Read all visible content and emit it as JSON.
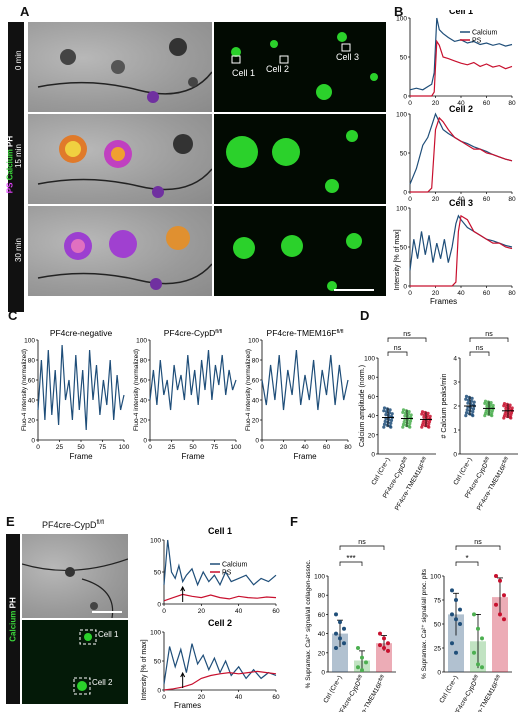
{
  "panels": {
    "A": "A",
    "B": "B",
    "C": "C",
    "D": "D",
    "E": "E",
    "F": "F"
  },
  "panelA": {
    "side_label_ps": "PS",
    "side_label_calcium": "Calcium",
    "side_label_ph": "PH",
    "times": [
      "0 min",
      "15 min",
      "30 min"
    ],
    "cells": [
      "Cell 1",
      "Cell 2",
      "Cell 3"
    ]
  },
  "panelB": {
    "titles": [
      "Cell 1",
      "Cell 2",
      "Cell 3"
    ],
    "legend": [
      "Calcium",
      "PS"
    ],
    "ylabel": "Intensity [% of max]",
    "xlabel": "Frames",
    "colors": {
      "calcium": "#1f4e79",
      "ps": "#c8102e"
    }
  },
  "panelC": {
    "titles": [
      "PF4cre-negative",
      "PF4cre-CypD",
      "PF4cre-TMEM16F"
    ],
    "title_sup": "fl/fl",
    "ylabel": "Fluo-4 intensity (normalized)",
    "xlabel": "Frame"
  },
  "panelD": {
    "ylabels": [
      "Calcium amplitude (norm.)",
      "# Calcium peaks/min"
    ],
    "groups": [
      "Ctrl (Cre−)",
      "PF4cre-CypD",
      "PF4cre-TMEM16F"
    ],
    "group_sup": "fl/fl",
    "ns": "ns"
  },
  "panelE": {
    "title": "PF4cre-CypD",
    "title_sup": "fl/fl",
    "side_label_calcium": "Calcium",
    "side_label_ph": "PH",
    "cells": [
      "Cell 1",
      "Cell 2"
    ],
    "legend": [
      "Calcium",
      "PS"
    ],
    "ylabel": "Intensity [% of max]",
    "xlabel": "Frames"
  },
  "panelF": {
    "ylabels": [
      "% Supramax. Ca²⁺ signal/all collagen-assoc.",
      "% Supramax. Ca²⁺ signal/all proc. plts"
    ],
    "groups": [
      "Ctrl (Cre−)",
      "PF4cre-CypD",
      "PF4cre-TMEM16F"
    ],
    "group_sup": "fl/fl",
    "sig": [
      "***",
      "ns",
      "*",
      "ns"
    ]
  },
  "chart_data": [
    {
      "type": "line",
      "id": "B-cell1",
      "title": "Cell 1",
      "xlim": [
        0,
        80
      ],
      "ylim": [
        0,
        100
      ],
      "xticks": [
        0,
        20,
        40,
        60,
        80
      ],
      "yticks": [
        0,
        50,
        100
      ],
      "series": [
        {
          "name": "Calcium",
          "x": [
            0,
            5,
            10,
            14,
            17,
            19,
            21,
            23,
            26,
            30,
            35,
            40,
            45,
            50,
            55,
            60,
            65,
            70,
            75,
            80
          ],
          "y": [
            8,
            10,
            8,
            12,
            15,
            30,
            100,
            85,
            80,
            75,
            70,
            72,
            68,
            70,
            66,
            68,
            65,
            67,
            64,
            66
          ]
        },
        {
          "name": "PS",
          "x": [
            0,
            5,
            10,
            14,
            17,
            19,
            21,
            23,
            26,
            30,
            35,
            40,
            45,
            50,
            55,
            60,
            65,
            70,
            75,
            80
          ],
          "y": [
            0,
            0,
            0,
            0,
            0,
            5,
            70,
            65,
            50,
            48,
            45,
            42,
            40,
            43,
            38,
            41,
            37,
            39,
            35,
            38
          ]
        }
      ]
    },
    {
      "type": "line",
      "id": "B-cell2",
      "title": "Cell 2",
      "xlim": [
        0,
        80
      ],
      "ylim": [
        0,
        100
      ],
      "xticks": [
        0,
        20,
        40,
        60,
        80
      ],
      "yticks": [
        0,
        50,
        100
      ],
      "series": [
        {
          "name": "Calcium",
          "x": [
            0,
            5,
            10,
            14,
            17,
            20,
            23,
            26,
            30,
            35,
            40,
            45,
            50,
            55,
            60,
            65,
            70,
            75,
            80
          ],
          "y": [
            10,
            30,
            60,
            70,
            85,
            100,
            90,
            80,
            75,
            70,
            65,
            62,
            58,
            55,
            52,
            48,
            45,
            42,
            40
          ]
        },
        {
          "name": "PS",
          "x": [
            0,
            5,
            10,
            14,
            17,
            20,
            23,
            26,
            30,
            35,
            40,
            45,
            50,
            55,
            60,
            65,
            70,
            75,
            80
          ],
          "y": [
            0,
            0,
            0,
            0,
            5,
            80,
            95,
            90,
            80,
            70,
            65,
            60,
            55,
            55,
            50,
            48,
            45,
            42,
            40
          ]
        }
      ]
    },
    {
      "type": "line",
      "id": "B-cell3",
      "title": "Cell 3",
      "xlim": [
        0,
        80
      ],
      "ylim": [
        0,
        100
      ],
      "xticks": [
        0,
        20,
        40,
        60,
        80
      ],
      "yticks": [
        0,
        50,
        100
      ],
      "series": [
        {
          "name": "Calcium",
          "x": [
            0,
            3,
            6,
            9,
            12,
            15,
            18,
            21,
            24,
            27,
            30,
            33,
            36,
            38,
            40,
            45,
            50,
            55,
            60,
            65,
            70,
            75,
            80
          ],
          "y": [
            20,
            60,
            35,
            70,
            40,
            65,
            30,
            55,
            35,
            60,
            30,
            50,
            80,
            90,
            85,
            75,
            70,
            65,
            60,
            58,
            55,
            52,
            50
          ]
        },
        {
          "name": "PS",
          "x": [
            0,
            3,
            6,
            9,
            12,
            15,
            18,
            21,
            24,
            27,
            30,
            33,
            36,
            38,
            40,
            45,
            50,
            55,
            60,
            65,
            70,
            75,
            80
          ],
          "y": [
            0,
            0,
            0,
            0,
            0,
            0,
            0,
            0,
            0,
            0,
            0,
            0,
            5,
            70,
            90,
            85,
            70,
            65,
            60,
            55,
            55,
            50,
            48
          ]
        }
      ]
    },
    {
      "type": "line",
      "id": "C-neg",
      "title": "PF4cre-negative",
      "xlim": [
        0,
        100
      ],
      "ylim": [
        0,
        100
      ],
      "xticks": [
        0,
        25,
        50,
        75,
        100
      ],
      "yticks": [
        0,
        20,
        40,
        60,
        80,
        100
      ],
      "series": [
        {
          "name": "Fluo-4",
          "x": [
            0,
            4,
            8,
            12,
            16,
            20,
            24,
            28,
            32,
            36,
            40,
            44,
            48,
            52,
            56,
            60,
            64,
            68,
            72,
            76,
            80,
            84,
            88,
            92,
            96,
            100
          ],
          "y": [
            30,
            80,
            20,
            90,
            25,
            70,
            15,
            95,
            40,
            60,
            20,
            85,
            30,
            70,
            10,
            90,
            40,
            75,
            25,
            60,
            35,
            80,
            20,
            65,
            30,
            45
          ]
        }
      ]
    },
    {
      "type": "line",
      "id": "C-cypd",
      "title": "PF4cre-CypD",
      "xlim": [
        0,
        100
      ],
      "ylim": [
        0,
        100
      ],
      "xticks": [
        0,
        25,
        50,
        75,
        100
      ],
      "yticks": [
        0,
        20,
        40,
        60,
        80,
        100
      ],
      "series": [
        {
          "name": "Fluo-4",
          "x": [
            0,
            4,
            8,
            12,
            16,
            20,
            24,
            28,
            32,
            36,
            40,
            44,
            48,
            52,
            56,
            60,
            64,
            68,
            72,
            76,
            80,
            84,
            88,
            92,
            96,
            100
          ],
          "y": [
            40,
            70,
            35,
            80,
            45,
            60,
            30,
            75,
            50,
            65,
            40,
            85,
            45,
            70,
            35,
            80,
            50,
            90,
            40,
            75,
            55,
            85,
            45,
            70,
            50,
            60
          ]
        }
      ]
    },
    {
      "type": "line",
      "id": "C-tmem",
      "title": "PF4cre-TMEM16F",
      "xlim": [
        0,
        80
      ],
      "ylim": [
        0,
        100
      ],
      "xticks": [
        0,
        20,
        40,
        60,
        80
      ],
      "yticks": [
        0,
        20,
        40,
        60,
        80,
        100
      ],
      "series": [
        {
          "name": "Fluo-4",
          "x": [
            0,
            4,
            8,
            12,
            16,
            20,
            24,
            28,
            32,
            36,
            40,
            44,
            48,
            52,
            56,
            60,
            64,
            68,
            72,
            76,
            80
          ],
          "y": [
            60,
            35,
            75,
            40,
            85,
            30,
            70,
            45,
            90,
            35,
            65,
            40,
            80,
            30,
            70,
            45,
            85,
            35,
            75,
            40,
            60
          ]
        }
      ]
    },
    {
      "type": "scatter",
      "id": "D-amp",
      "ylabel": "Calcium amplitude (norm.)",
      "ylim": [
        0,
        100
      ],
      "yticks": [
        0,
        20,
        40,
        60,
        80,
        100
      ],
      "categories": [
        "Ctrl (Cre−)",
        "PF4cre-CypD",
        "PF4cre-TMEM16F"
      ],
      "means": [
        38,
        37,
        36
      ],
      "sd": [
        10,
        9,
        8
      ],
      "colors": [
        "#1f4e79",
        "#4caf50",
        "#c8102e"
      ]
    },
    {
      "type": "scatter",
      "id": "D-peaks",
      "ylabel": "# Calcium peaks/min",
      "ylim": [
        0,
        4
      ],
      "yticks": [
        0,
        1,
        2,
        3,
        4
      ],
      "categories": [
        "Ctrl (Cre−)",
        "PF4cre-CypD",
        "PF4cre-TMEM16F"
      ],
      "means": [
        2.0,
        1.9,
        1.8
      ],
      "sd": [
        0.4,
        0.3,
        0.3
      ],
      "colors": [
        "#1f4e79",
        "#4caf50",
        "#c8102e"
      ]
    },
    {
      "type": "line",
      "id": "E-cell1",
      "title": "Cell 1",
      "xlim": [
        0,
        60
      ],
      "ylim": [
        0,
        100
      ],
      "xticks": [
        0,
        20,
        40,
        60
      ],
      "yticks": [
        0,
        50,
        100
      ],
      "series": [
        {
          "name": "Calcium",
          "x": [
            0,
            2,
            4,
            6,
            8,
            10,
            12,
            15,
            18,
            21,
            24,
            27,
            30,
            33,
            36,
            40,
            44,
            48,
            52,
            56,
            60
          ],
          "y": [
            30,
            100,
            50,
            40,
            60,
            35,
            45,
            55,
            30,
            50,
            35,
            45,
            30,
            50,
            35,
            40,
            45,
            30,
            40,
            35,
            45
          ]
        },
        {
          "name": "PS",
          "x": [
            0,
            5,
            10,
            15,
            20,
            25,
            30,
            35,
            40,
            45,
            50,
            55,
            60
          ],
          "y": [
            5,
            10,
            15,
            12,
            10,
            14,
            10,
            8,
            12,
            10,
            9,
            11,
            10
          ]
        }
      ]
    },
    {
      "type": "line",
      "id": "E-cell2",
      "title": "Cell 2",
      "xlim": [
        0,
        60
      ],
      "ylim": [
        0,
        100
      ],
      "xticks": [
        0,
        20,
        40,
        60
      ],
      "yticks": [
        0,
        50,
        100
      ],
      "series": [
        {
          "name": "Calcium",
          "x": [
            0,
            3,
            6,
            9,
            12,
            15,
            18,
            21,
            24,
            27,
            30,
            33,
            36,
            40,
            44,
            48,
            52,
            56,
            60
          ],
          "y": [
            10,
            75,
            40,
            70,
            30,
            80,
            45,
            60,
            35,
            55,
            30,
            50,
            25,
            40,
            20,
            35,
            20,
            30,
            25
          ]
        },
        {
          "name": "PS",
          "x": [
            0,
            5,
            10,
            15,
            20,
            25,
            30,
            35,
            40,
            45,
            50,
            55,
            60
          ],
          "y": [
            0,
            2,
            5,
            10,
            20,
            25,
            28,
            30,
            28,
            30,
            32,
            30,
            28
          ]
        }
      ]
    },
    {
      "type": "bar",
      "id": "F-collagen",
      "ylabel": "% Supramax. Ca²⁺ signal/all collagen-assoc.",
      "ylim": [
        0,
        100
      ],
      "yticks": [
        0,
        20,
        40,
        60,
        80,
        100
      ],
      "categories": [
        "Ctrl (Cre−)",
        "PF4cre-CypD",
        "PF4cre-TMEM16F"
      ],
      "values": [
        40,
        12,
        30
      ],
      "sd": [
        14,
        10,
        8
      ],
      "points": [
        [
          60,
          52,
          45,
          40,
          35,
          30,
          25
        ],
        [
          25,
          15,
          10,
          5,
          2
        ],
        [
          40,
          35,
          30,
          28,
          25,
          22
        ]
      ],
      "colors": [
        "#1f4e79",
        "#4caf50",
        "#c8102e"
      ]
    },
    {
      "type": "bar",
      "id": "F-proc",
      "ylabel": "% Supramax. Ca²⁺ signal/all proc. plts",
      "ylim": [
        0,
        100
      ],
      "yticks": [
        0,
        25,
        50,
        75,
        100
      ],
      "categories": [
        "Ctrl (Cre−)",
        "PF4cre-CypD",
        "PF4cre-TMEM16F"
      ],
      "values": [
        60,
        32,
        78
      ],
      "sd": [
        22,
        28,
        20
      ],
      "points": [
        [
          85,
          75,
          65,
          60,
          55,
          50,
          30,
          20
        ],
        [
          60,
          45,
          35,
          20,
          8,
          5
        ],
        [
          100,
          95,
          80,
          70,
          60,
          55
        ]
      ],
      "colors": [
        "#1f4e79",
        "#4caf50",
        "#c8102e"
      ]
    }
  ]
}
